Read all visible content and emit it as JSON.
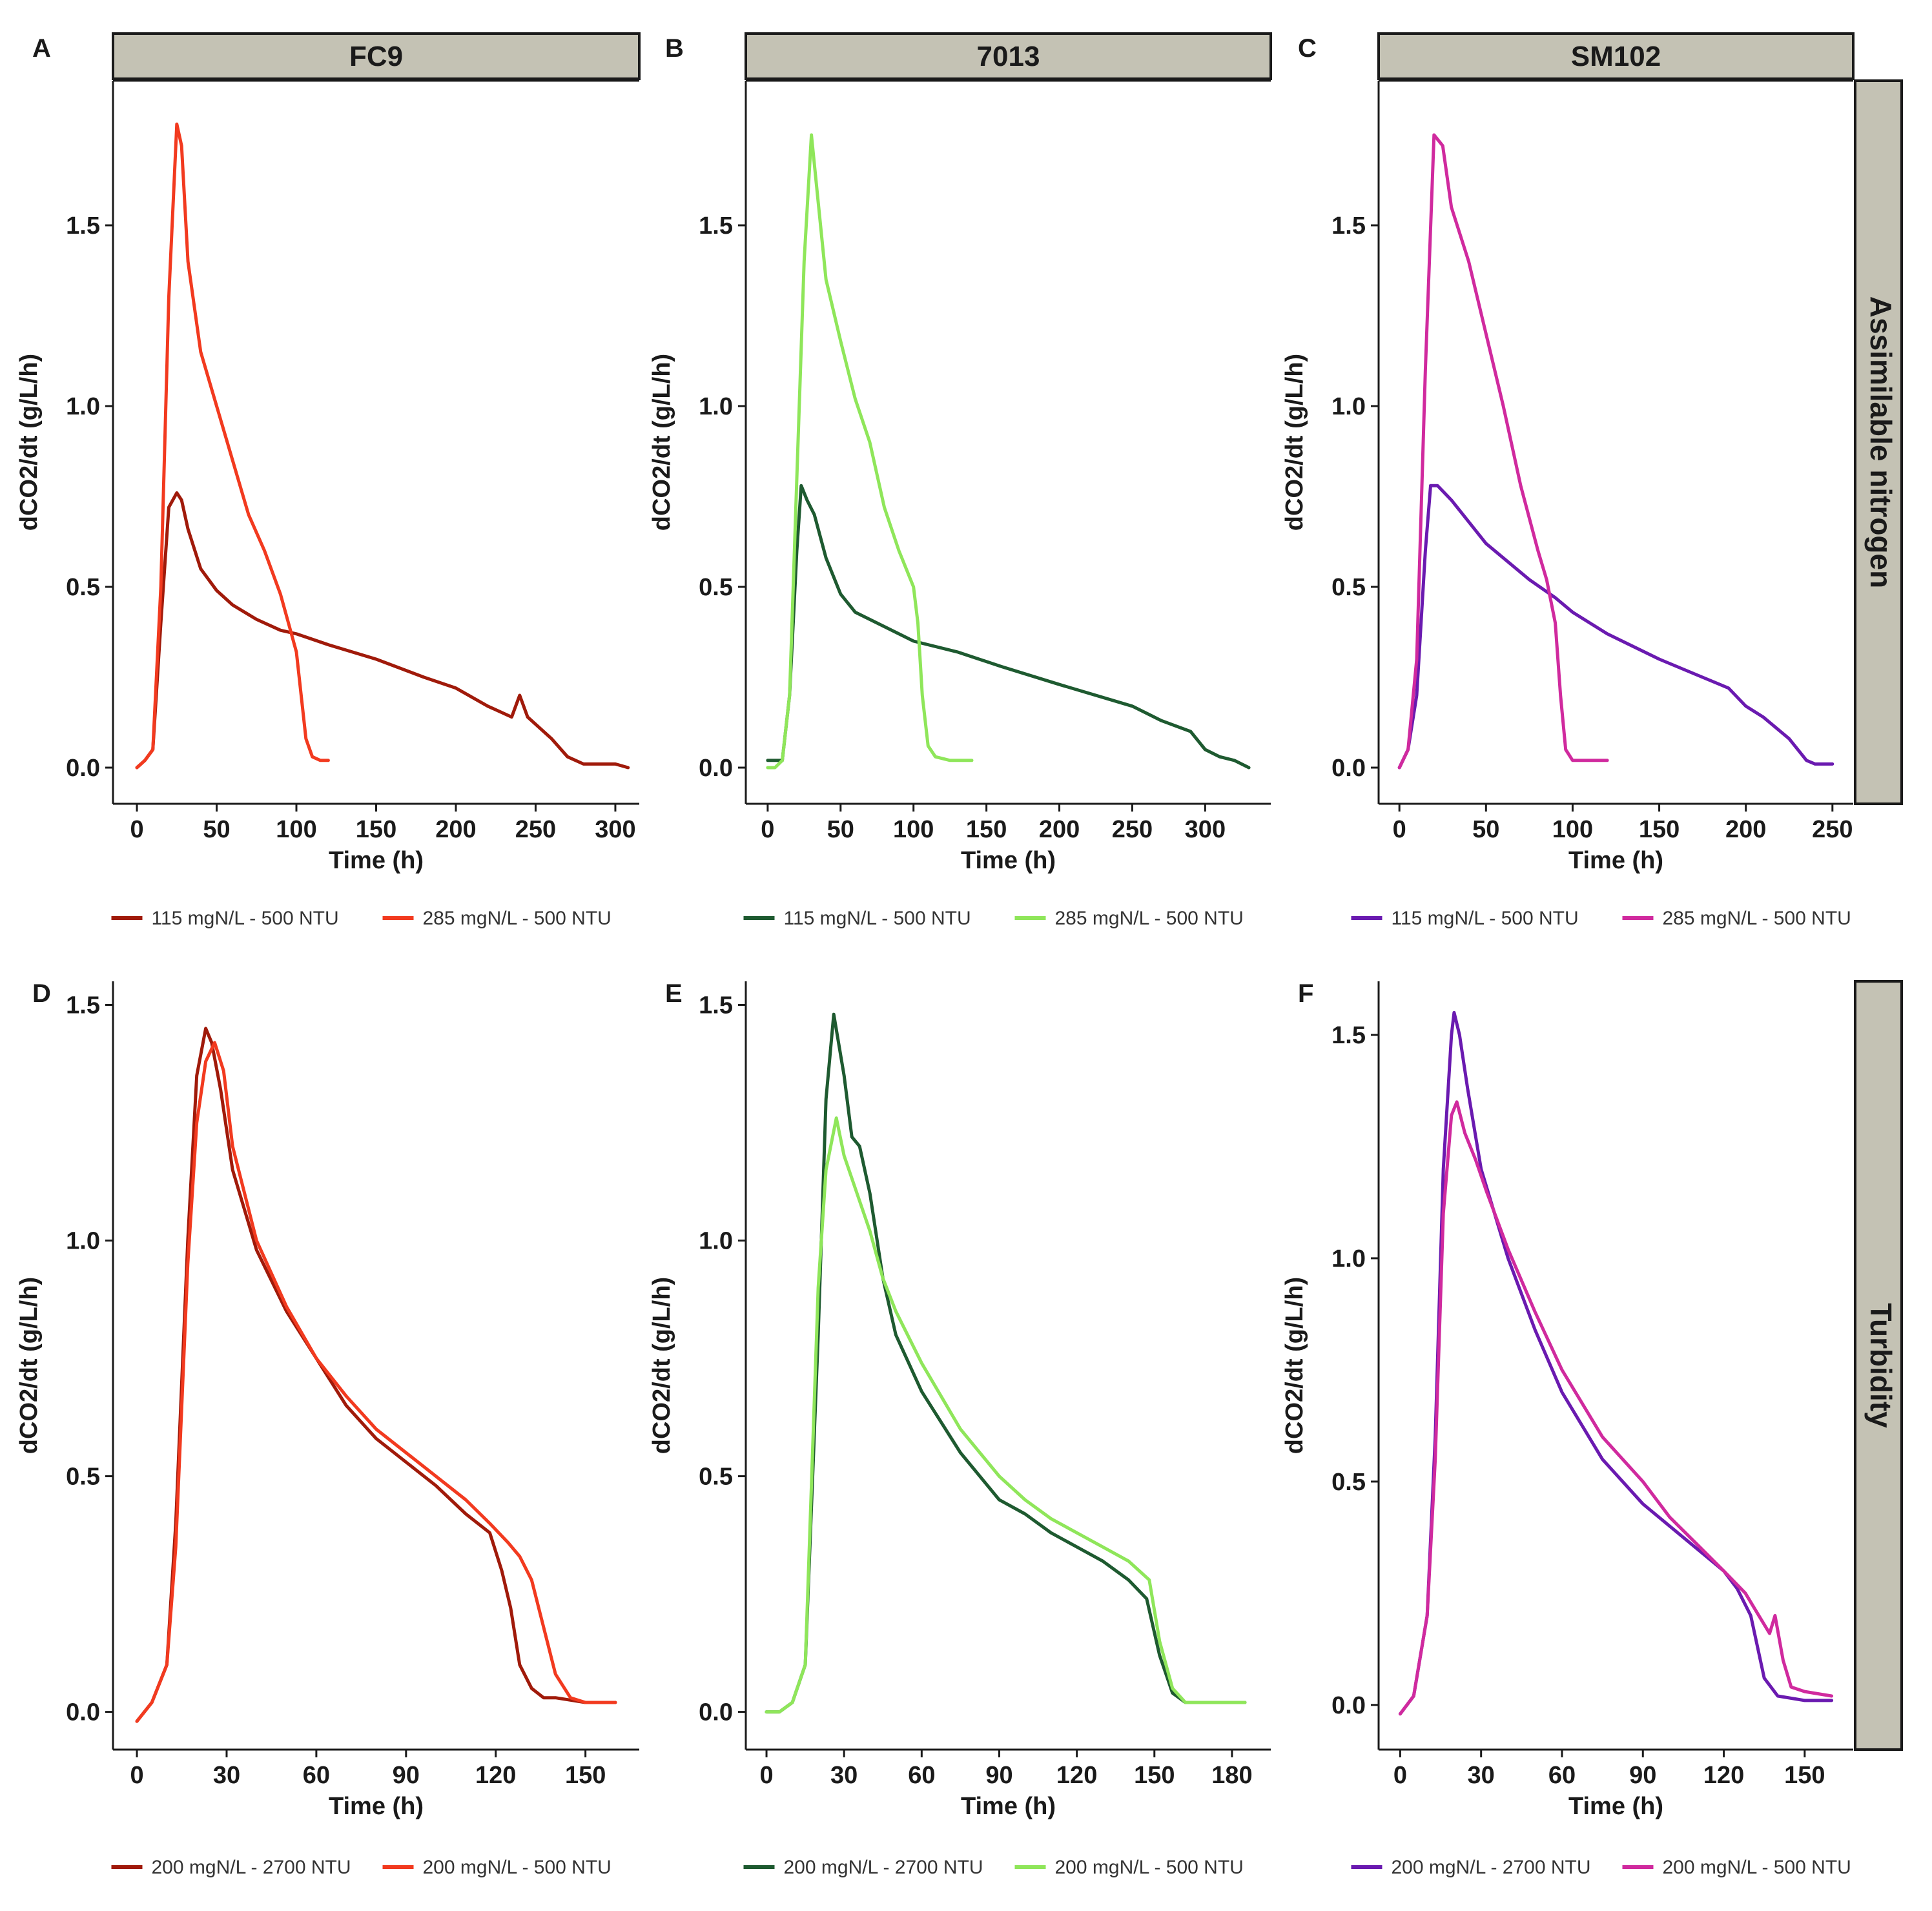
{
  "figure": {
    "row_strips": [
      "Assimilable nitrogen",
      "Turbidity"
    ],
    "col_strips": [
      "FC9",
      "7013",
      "SM102"
    ]
  },
  "chart_data": [
    {
      "type": "line",
      "panel": "A",
      "strip": "FC9",
      "row": 0,
      "col": 0,
      "xlabel": "Time (h)",
      "ylabel": "dCO2/dt (g/L/h)",
      "xlim": [
        -15,
        315
      ],
      "ylim": [
        -0.1,
        1.9
      ],
      "xticks": [
        0,
        50,
        100,
        150,
        200,
        250,
        300
      ],
      "yticks": [
        0.0,
        0.5,
        1.0,
        1.5
      ],
      "series": [
        {
          "name": "115 mgN/L - 500 NTU",
          "color": "#a01a0a",
          "x": [
            0,
            5,
            10,
            15,
            20,
            25,
            28,
            32,
            40,
            50,
            60,
            75,
            90,
            100,
            120,
            150,
            180,
            200,
            220,
            235,
            240,
            245,
            260,
            270,
            280,
            290,
            300,
            308
          ],
          "y": [
            0.0,
            0.02,
            0.05,
            0.4,
            0.72,
            0.76,
            0.74,
            0.66,
            0.55,
            0.49,
            0.45,
            0.41,
            0.38,
            0.37,
            0.34,
            0.3,
            0.25,
            0.22,
            0.17,
            0.14,
            0.2,
            0.14,
            0.08,
            0.03,
            0.01,
            0.01,
            0.01,
            0.0
          ]
        },
        {
          "name": "285 mgN/L - 500 NTU",
          "color": "#f23a1f",
          "x": [
            0,
            5,
            10,
            15,
            20,
            25,
            28,
            32,
            40,
            50,
            60,
            70,
            80,
            90,
            95,
            100,
            103,
            106,
            110,
            115,
            120
          ],
          "y": [
            0.0,
            0.02,
            0.05,
            0.5,
            1.3,
            1.78,
            1.72,
            1.4,
            1.15,
            1.0,
            0.85,
            0.7,
            0.6,
            0.48,
            0.4,
            0.32,
            0.2,
            0.08,
            0.03,
            0.02,
            0.02
          ]
        }
      ]
    },
    {
      "type": "line",
      "panel": "B",
      "strip": "7013",
      "row": 0,
      "col": 1,
      "xlabel": "Time (h)",
      "ylabel": "dCO2/dt (g/L/h)",
      "xlim": [
        -15,
        345
      ],
      "ylim": [
        -0.1,
        1.9
      ],
      "xticks": [
        0,
        50,
        100,
        150,
        200,
        250,
        300
      ],
      "yticks": [
        0.0,
        0.5,
        1.0,
        1.5
      ],
      "series": [
        {
          "name": "115 mgN/L - 500 NTU",
          "color": "#1e5a30",
          "x": [
            0,
            5,
            10,
            15,
            20,
            23,
            27,
            32,
            40,
            50,
            60,
            75,
            100,
            130,
            160,
            200,
            250,
            270,
            290,
            300,
            310,
            320,
            330
          ],
          "y": [
            0.02,
            0.02,
            0.02,
            0.2,
            0.6,
            0.78,
            0.74,
            0.7,
            0.58,
            0.48,
            0.43,
            0.4,
            0.35,
            0.32,
            0.28,
            0.23,
            0.17,
            0.13,
            0.1,
            0.05,
            0.03,
            0.02,
            0.0
          ]
        },
        {
          "name": "285 mgN/L - 500 NTU",
          "color": "#8fe65a",
          "x": [
            0,
            5,
            10,
            15,
            20,
            25,
            30,
            35,
            40,
            50,
            60,
            70,
            80,
            90,
            100,
            103,
            106,
            110,
            115,
            125,
            140
          ],
          "y": [
            0.0,
            0.0,
            0.02,
            0.2,
            0.8,
            1.4,
            1.75,
            1.55,
            1.35,
            1.18,
            1.02,
            0.9,
            0.72,
            0.6,
            0.5,
            0.4,
            0.2,
            0.06,
            0.03,
            0.02,
            0.02
          ]
        }
      ]
    },
    {
      "type": "line",
      "panel": "C",
      "strip": "SM102",
      "row": 0,
      "col": 2,
      "xlabel": "Time (h)",
      "ylabel": "dCO2/dt (g/L/h)",
      "xlim": [
        -12,
        262
      ],
      "ylim": [
        -0.1,
        1.9
      ],
      "xticks": [
        0,
        50,
        100,
        150,
        200,
        250
      ],
      "yticks": [
        0.0,
        0.5,
        1.0,
        1.5
      ],
      "series": [
        {
          "name": "115 mgN/L - 500 NTU",
          "color": "#6a1ab0",
          "x": [
            0,
            5,
            10,
            15,
            18,
            22,
            30,
            40,
            50,
            60,
            75,
            90,
            100,
            120,
            150,
            175,
            190,
            200,
            210,
            225,
            235,
            240,
            250
          ],
          "y": [
            0.0,
            0.05,
            0.2,
            0.6,
            0.78,
            0.78,
            0.74,
            0.68,
            0.62,
            0.58,
            0.52,
            0.47,
            0.43,
            0.37,
            0.3,
            0.25,
            0.22,
            0.17,
            0.14,
            0.08,
            0.02,
            0.01,
            0.01
          ]
        },
        {
          "name": "285 mgN/L - 500 NTU",
          "color": "#d02a9e",
          "x": [
            0,
            5,
            10,
            15,
            20,
            25,
            30,
            40,
            50,
            60,
            70,
            80,
            85,
            90,
            93,
            96,
            100,
            110,
            120
          ],
          "y": [
            0.0,
            0.05,
            0.3,
            1.1,
            1.75,
            1.72,
            1.55,
            1.4,
            1.2,
            1.0,
            0.78,
            0.6,
            0.52,
            0.4,
            0.2,
            0.05,
            0.02,
            0.02,
            0.02
          ]
        }
      ]
    },
    {
      "type": "line",
      "panel": "D",
      "strip": "FC9",
      "row": 1,
      "col": 0,
      "xlabel": "Time (h)",
      "ylabel": "dCO2/dt (g/L/h)",
      "xlim": [
        -8,
        168
      ],
      "ylim": [
        -0.08,
        1.55
      ],
      "xticks": [
        0,
        30,
        60,
        90,
        120,
        150
      ],
      "yticks": [
        0.0,
        0.5,
        1.0,
        1.5
      ],
      "series": [
        {
          "name": "200 mgN/L - 2700 NTU",
          "color": "#a01a0a",
          "x": [
            0,
            5,
            10,
            13,
            17,
            20,
            23,
            25,
            28,
            32,
            40,
            50,
            60,
            70,
            80,
            90,
            100,
            110,
            118,
            122,
            125,
            128,
            132,
            136,
            140,
            150,
            160
          ],
          "y": [
            -0.02,
            0.02,
            0.1,
            0.4,
            1.0,
            1.35,
            1.45,
            1.42,
            1.32,
            1.15,
            0.98,
            0.85,
            0.75,
            0.65,
            0.58,
            0.53,
            0.48,
            0.42,
            0.38,
            0.3,
            0.22,
            0.1,
            0.05,
            0.03,
            0.03,
            0.02,
            0.02
          ]
        },
        {
          "name": "200 mgN/L - 500 NTU",
          "color": "#f23a1f",
          "x": [
            0,
            5,
            10,
            13,
            17,
            20,
            23,
            26,
            29,
            32,
            40,
            50,
            60,
            70,
            80,
            90,
            100,
            110,
            118,
            124,
            128,
            132,
            136,
            140,
            145,
            150,
            160
          ],
          "y": [
            -0.02,
            0.02,
            0.1,
            0.35,
            0.95,
            1.25,
            1.38,
            1.42,
            1.36,
            1.2,
            1.0,
            0.86,
            0.75,
            0.67,
            0.6,
            0.55,
            0.5,
            0.45,
            0.4,
            0.36,
            0.33,
            0.28,
            0.18,
            0.08,
            0.03,
            0.02,
            0.02
          ]
        }
      ]
    },
    {
      "type": "line",
      "panel": "E",
      "strip": "7013",
      "row": 1,
      "col": 1,
      "xlabel": "Time (h)",
      "ylabel": "dCO2/dt (g/L/h)",
      "xlim": [
        -8,
        195
      ],
      "ylim": [
        -0.08,
        1.55
      ],
      "xticks": [
        0,
        30,
        60,
        90,
        120,
        150,
        180
      ],
      "yticks": [
        0.0,
        0.5,
        1.0,
        1.5
      ],
      "series": [
        {
          "name": "200 mgN/L - 2700 NTU",
          "color": "#1e5a30",
          "x": [
            0,
            5,
            10,
            15,
            20,
            23,
            26,
            30,
            33,
            36,
            40,
            45,
            50,
            60,
            75,
            90,
            100,
            110,
            120,
            130,
            140,
            147,
            152,
            157,
            162,
            170,
            175,
            185
          ],
          "y": [
            0.0,
            0.0,
            0.02,
            0.1,
            0.8,
            1.3,
            1.48,
            1.35,
            1.22,
            1.2,
            1.1,
            0.92,
            0.8,
            0.68,
            0.55,
            0.45,
            0.42,
            0.38,
            0.35,
            0.32,
            0.28,
            0.24,
            0.12,
            0.04,
            0.02,
            0.02,
            0.02,
            0.02
          ]
        },
        {
          "name": "200 mgN/L - 500 NTU",
          "color": "#8fe65a",
          "x": [
            0,
            5,
            10,
            15,
            20,
            23,
            27,
            30,
            35,
            40,
            45,
            50,
            60,
            75,
            90,
            100,
            110,
            120,
            130,
            140,
            148,
            152,
            157,
            162,
            170,
            185
          ],
          "y": [
            0.0,
            0.0,
            0.02,
            0.1,
            0.9,
            1.15,
            1.26,
            1.18,
            1.1,
            1.02,
            0.92,
            0.85,
            0.74,
            0.6,
            0.5,
            0.45,
            0.41,
            0.38,
            0.35,
            0.32,
            0.28,
            0.15,
            0.05,
            0.02,
            0.02,
            0.02
          ]
        }
      ]
    },
    {
      "type": "line",
      "panel": "F",
      "strip": "SM102",
      "row": 1,
      "col": 2,
      "xlabel": "Time (h)",
      "ylabel": "dCO2/dt (g/L/h)",
      "xlim": [
        -8,
        168
      ],
      "ylim": [
        -0.1,
        1.62
      ],
      "xticks": [
        0,
        30,
        60,
        90,
        120,
        150
      ],
      "yticks": [
        0.0,
        0.5,
        1.0,
        1.5
      ],
      "series": [
        {
          "name": "200 mgN/L - 2700 NTU",
          "color": "#6a1ab0",
          "x": [
            0,
            5,
            10,
            13,
            16,
            19,
            20,
            22,
            25,
            30,
            40,
            50,
            60,
            75,
            90,
            100,
            110,
            120,
            125,
            130,
            135,
            140,
            150,
            160
          ],
          "y": [
            -0.02,
            0.02,
            0.2,
            0.6,
            1.2,
            1.5,
            1.55,
            1.5,
            1.38,
            1.2,
            1.0,
            0.84,
            0.7,
            0.55,
            0.45,
            0.4,
            0.35,
            0.3,
            0.26,
            0.2,
            0.06,
            0.02,
            0.01,
            0.01
          ]
        },
        {
          "name": "200 mgN/L - 500 NTU",
          "color": "#d02a9e",
          "x": [
            0,
            5,
            10,
            13,
            16,
            19,
            21,
            24,
            28,
            32,
            40,
            50,
            60,
            75,
            90,
            100,
            110,
            120,
            128,
            133,
            137,
            139,
            142,
            145,
            150,
            160
          ],
          "y": [
            -0.02,
            0.02,
            0.2,
            0.55,
            1.1,
            1.32,
            1.35,
            1.28,
            1.22,
            1.15,
            1.02,
            0.88,
            0.75,
            0.6,
            0.5,
            0.42,
            0.36,
            0.3,
            0.25,
            0.2,
            0.16,
            0.2,
            0.1,
            0.04,
            0.03,
            0.02
          ]
        }
      ]
    }
  ]
}
